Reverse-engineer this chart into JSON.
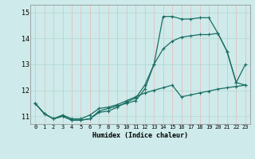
{
  "xlabel": "Humidex (Indice chaleur)",
  "ylabel": "",
  "xlim": [
    -0.5,
    23.5
  ],
  "ylim": [
    10.7,
    15.3
  ],
  "yticks": [
    11,
    12,
    13,
    14,
    15
  ],
  "xticks": [
    0,
    1,
    2,
    3,
    4,
    5,
    6,
    7,
    8,
    9,
    10,
    11,
    12,
    13,
    14,
    15,
    16,
    17,
    18,
    19,
    20,
    21,
    22,
    23
  ],
  "background_color": "#ceeaea",
  "grid_color": "#b0d8d8",
  "line_color": "#1a6e62",
  "series": [
    {
      "x": [
        0,
        1,
        2,
        3,
        4,
        5,
        6,
        7,
        8,
        9,
        10,
        11,
        12,
        13,
        14,
        15,
        16,
        17,
        18,
        19,
        20,
        21,
        22,
        23
      ],
      "y": [
        11.5,
        11.1,
        10.9,
        11.0,
        10.85,
        10.85,
        10.9,
        11.2,
        11.3,
        11.4,
        11.5,
        11.6,
        12.05,
        13.0,
        14.85,
        14.85,
        14.75,
        14.75,
        14.8,
        14.8,
        14.2,
        13.5,
        12.3,
        12.2
      ]
    },
    {
      "x": [
        0,
        1,
        2,
        3,
        4,
        5,
        6,
        7,
        8,
        9,
        10,
        11,
        12,
        13,
        14,
        15,
        16,
        17,
        18,
        19,
        20,
        21,
        22,
        23
      ],
      "y": [
        11.5,
        11.1,
        10.9,
        11.0,
        10.85,
        10.85,
        10.9,
        11.15,
        11.2,
        11.35,
        11.55,
        11.7,
        12.2,
        13.0,
        13.6,
        13.9,
        14.05,
        14.1,
        14.15,
        14.15,
        14.2,
        13.5,
        12.3,
        13.0
      ]
    },
    {
      "x": [
        0,
        1,
        2,
        3,
        4,
        5,
        6,
        7,
        8,
        9,
        10,
        11,
        12,
        13,
        14,
        15,
        16,
        17,
        18,
        19,
        20,
        21,
        22,
        23
      ],
      "y": [
        11.5,
        11.1,
        10.9,
        11.05,
        10.9,
        10.9,
        11.05,
        11.3,
        11.35,
        11.45,
        11.6,
        11.75,
        11.9,
        12.0,
        12.1,
        12.2,
        11.75,
        11.82,
        11.9,
        11.97,
        12.05,
        12.1,
        12.15,
        12.2
      ]
    }
  ]
}
